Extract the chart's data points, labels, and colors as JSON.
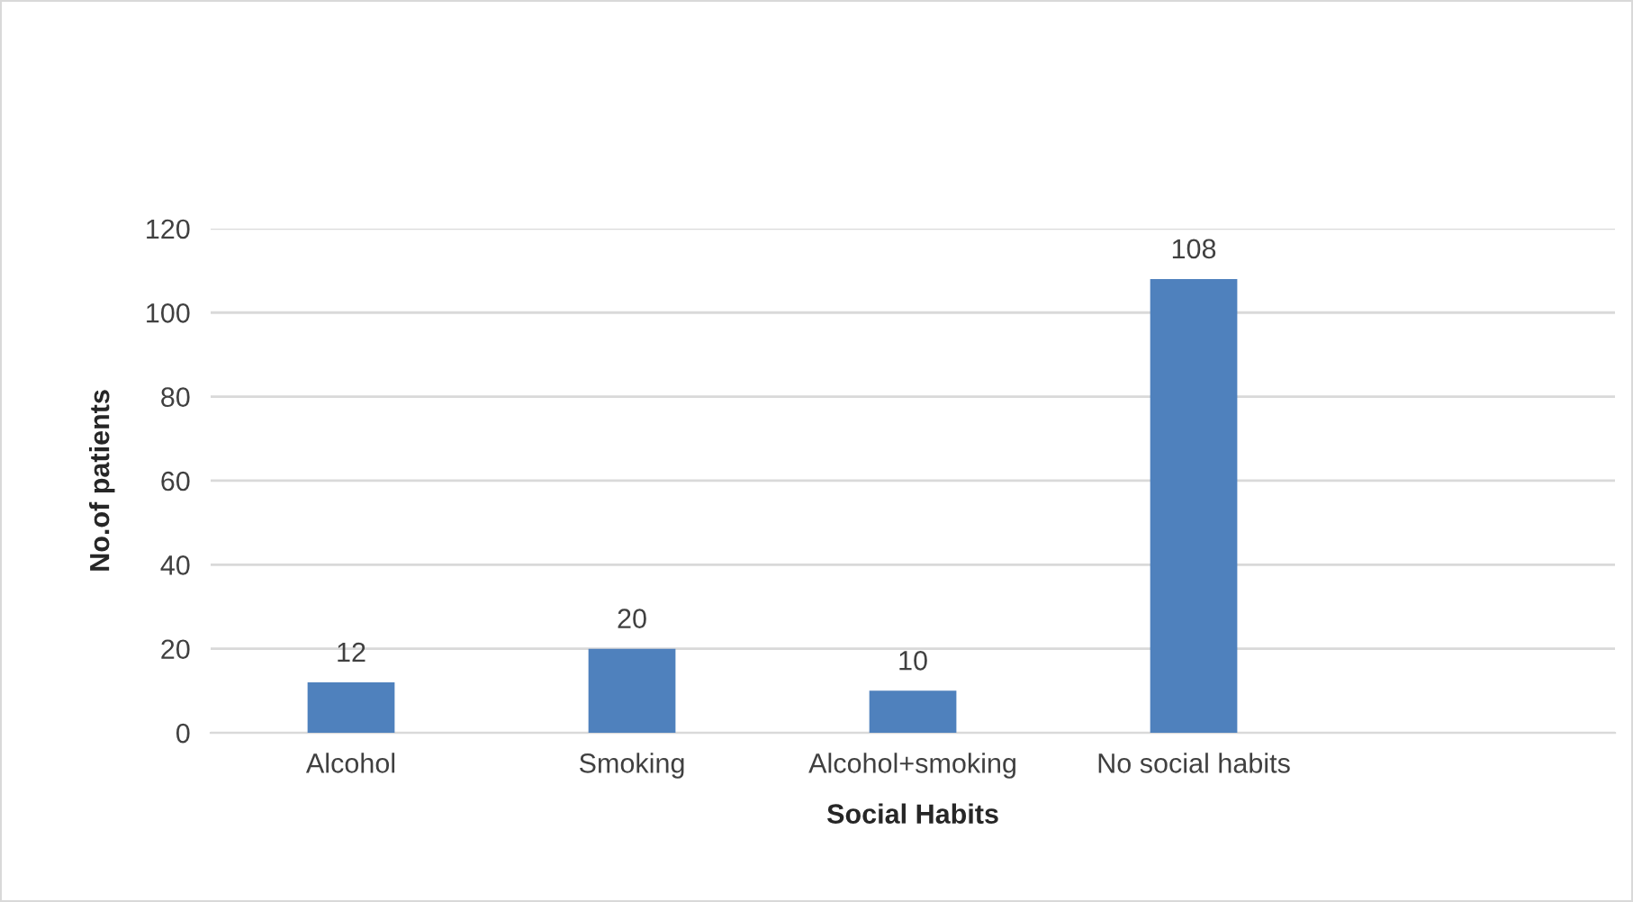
{
  "chart_data": {
    "type": "bar",
    "xlabel": "Social Habits",
    "ylabel": "No.of patients",
    "categories": [
      "Alcohol",
      "Smoking",
      "Alcohol+smoking",
      "No social habits",
      null
    ],
    "values": [
      12,
      20,
      10,
      108,
      null
    ],
    "color": "#4f81bd",
    "ylim": [
      0,
      120
    ],
    "yticks": [
      0,
      20,
      40,
      60,
      80,
      100,
      120
    ],
    "grid": "y",
    "data_labels": true
  }
}
